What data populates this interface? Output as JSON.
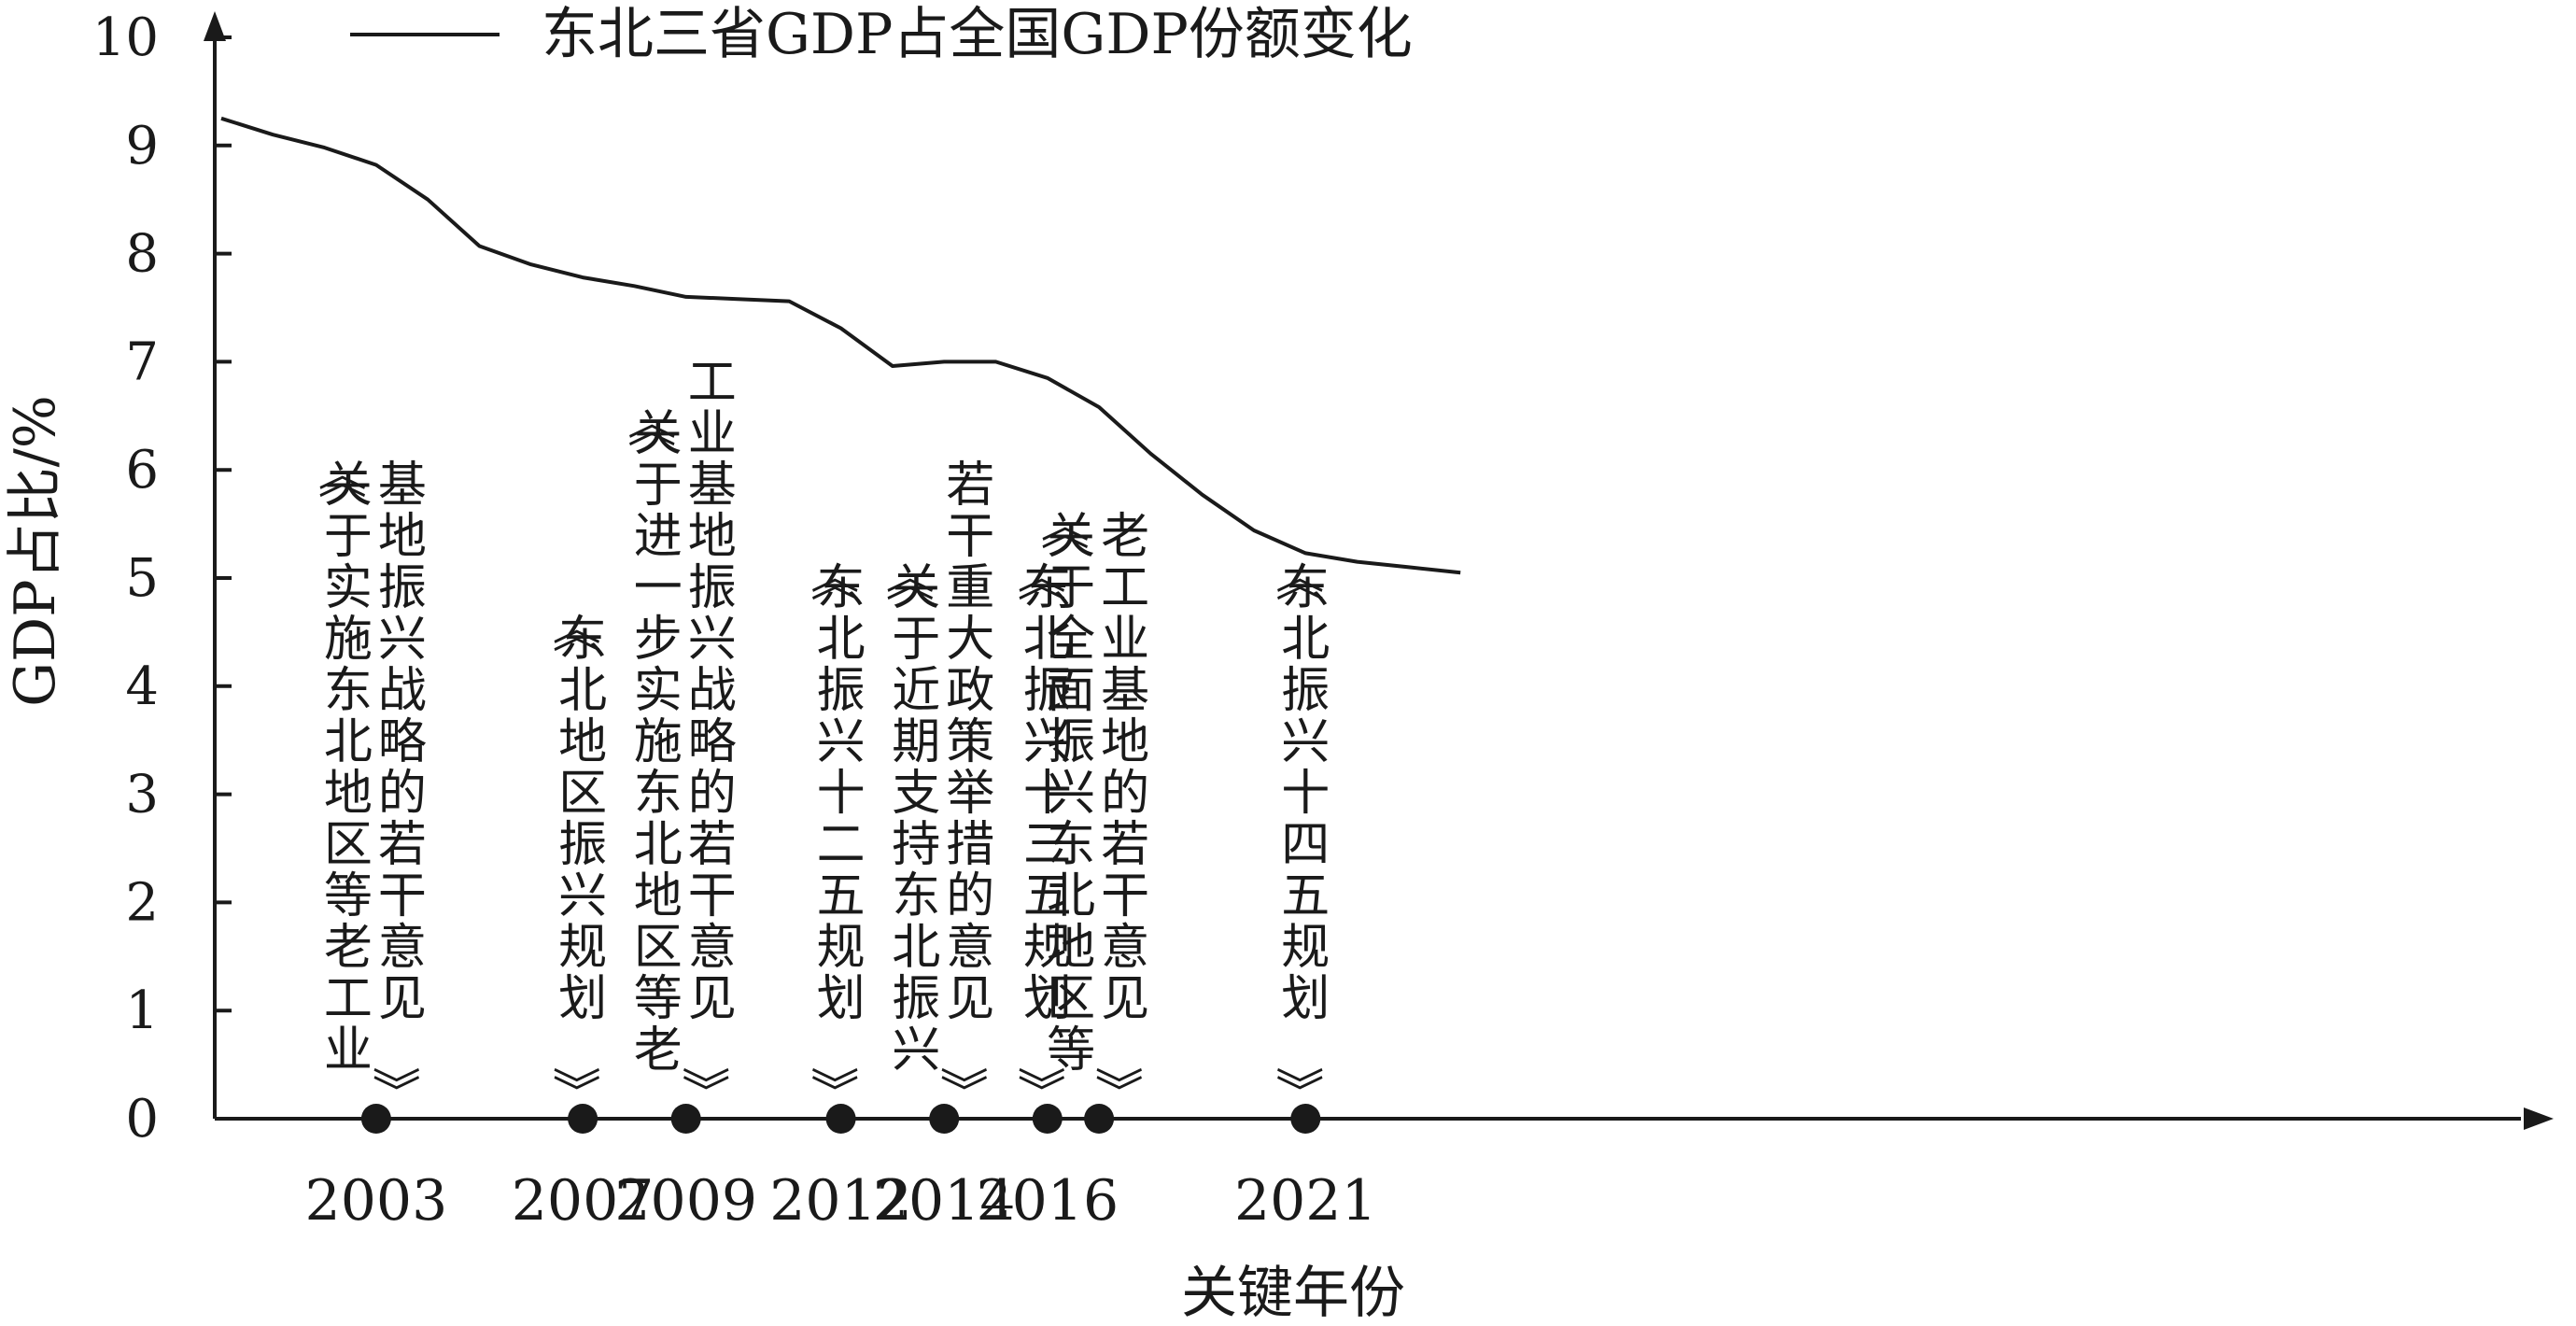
{
  "chart_data": {
    "type": "line",
    "legend": "东北三省GDP占全国GDP份额变化",
    "legend_position": "top",
    "xlabel": "关键年份",
    "ylabel": "GDP占比/%",
    "ylim": [
      0,
      10
    ],
    "yticks": [
      "0",
      "1",
      "2",
      "3",
      "4",
      "5",
      "6",
      "7",
      "8",
      "9",
      "10"
    ],
    "xlim": [
      2000,
      2024
    ],
    "grid": false,
    "series": [
      {
        "name": "东北三省GDP占全国GDP份额变化",
        "x": [
          2000,
          2001,
          2002,
          2003,
          2004,
          2005,
          2006,
          2007,
          2008,
          2009,
          2010,
          2011,
          2012,
          2013,
          2014,
          2015,
          2016,
          2017,
          2018,
          2019,
          2020,
          2021,
          2022,
          2023,
          2024
        ],
        "y": [
          9.25,
          9.1,
          8.98,
          8.82,
          8.5,
          8.07,
          7.9,
          7.78,
          7.7,
          7.6,
          7.58,
          7.56,
          7.31,
          6.96,
          7.0,
          7.0,
          6.85,
          6.58,
          6.15,
          5.77,
          5.44,
          5.23,
          5.15,
          5.1,
          5.05
        ]
      }
    ],
    "key_years": [
      {
        "year": "2003",
        "value": 2003,
        "annotations": [
          "基地振兴战略的若干意见》",
          "《关于实施东北地区等老工业"
        ]
      },
      {
        "year": "2007",
        "value": 2007,
        "annotations": [
          "《东北地区振兴规划》"
        ]
      },
      {
        "year": "2009",
        "value": 2009,
        "annotations": [
          "工业基地振兴战略的若干意见》",
          "《关于进一步实施东北地区等老"
        ]
      },
      {
        "year": "2012",
        "value": 2012,
        "annotations": [
          "《东北振兴十二五规划》"
        ]
      },
      {
        "year": "2014",
        "value": 2014,
        "annotations": [
          "若干重大政策举措的意见》",
          "《关于近期支持东北振兴"
        ]
      },
      {
        "year": "2016",
        "value": 2016,
        "annotations": [
          "《东北振兴十三五规划》"
        ]
      },
      {
        "year": "2016",
        "value": 2017,
        "annotations": [
          "老工业基地的若干意见》",
          "《关于全面振兴东北地区等"
        ]
      },
      {
        "year": "2021",
        "value": 2021,
        "annotations": [
          "《东北振兴十四五规划》"
        ]
      }
    ],
    "colors": {
      "line": "#1a1a1a",
      "axis": "#1a1a1a",
      "marker": "#1a1a1a"
    }
  }
}
